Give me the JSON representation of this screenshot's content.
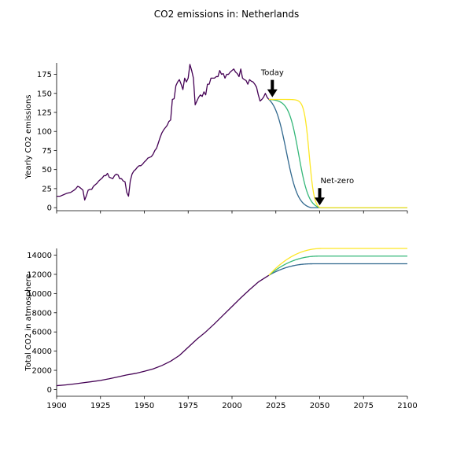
{
  "chart_data": {
    "title": "CO2 emissions in: Netherlands",
    "colors": {
      "historical": "#440154",
      "scenario_fast": "#31688e",
      "scenario_mid": "#35b779",
      "scenario_slow": "#fde725"
    },
    "x_ticks": [
      "1900",
      "1925",
      "1950",
      "1975",
      "2000",
      "2025",
      "2050",
      "2075",
      "2100"
    ],
    "panels": [
      {
        "type": "line",
        "ylabel": "Yearly CO2 emissions",
        "xlim": [
          1900,
          2100
        ],
        "ylim": [
          -4,
          190
        ],
        "y_ticks": [
          0,
          25,
          50,
          75,
          100,
          125,
          150,
          175
        ],
        "show_x_tick_labels": false,
        "historical": {
          "x": [
            1900,
            1902,
            1904,
            1906,
            1908,
            1910,
            1911,
            1912,
            1913,
            1914,
            1915,
            1916,
            1917,
            1918,
            1919,
            1920,
            1921,
            1922,
            1923,
            1924,
            1925,
            1926,
            1927,
            1928,
            1929,
            1930,
            1931,
            1932,
            1933,
            1934,
            1935,
            1936,
            1937,
            1938,
            1939,
            1940,
            1941,
            1942,
            1943,
            1944,
            1945,
            1946,
            1947,
            1948,
            1949,
            1950,
            1951,
            1952,
            1953,
            1954,
            1955,
            1956,
            1957,
            1958,
            1959,
            1960,
            1961,
            1962,
            1963,
            1964,
            1965,
            1966,
            1967,
            1968,
            1969,
            1970,
            1971,
            1972,
            1973,
            1974,
            1975,
            1976,
            1977,
            1978,
            1979,
            1980,
            1981,
            1982,
            1983,
            1984,
            1985,
            1986,
            1987,
            1988,
            1989,
            1990,
            1991,
            1992,
            1993,
            1994,
            1995,
            1996,
            1997,
            1998,
            1999,
            2000,
            2001,
            2002,
            2003,
            2004,
            2005,
            2006,
            2007,
            2008,
            2009,
            2010,
            2011,
            2012,
            2013,
            2014,
            2015,
            2016,
            2017,
            2018,
            2019,
            2020,
            2021
          ],
          "y": [
            15,
            15,
            17,
            19,
            20,
            23,
            25,
            28,
            27,
            25,
            23,
            10,
            16,
            23,
            24,
            24,
            28,
            30,
            32,
            35,
            37,
            39,
            42,
            42,
            45,
            40,
            39,
            38,
            42,
            44,
            43,
            38,
            38,
            35,
            34,
            20,
            15,
            35,
            44,
            48,
            50,
            53,
            55,
            55,
            57,
            60,
            62,
            65,
            66,
            67,
            70,
            75,
            78,
            85,
            92,
            98,
            102,
            105,
            108,
            113,
            115,
            142,
            143,
            160,
            165,
            168,
            162,
            155,
            170,
            165,
            170,
            188,
            180,
            170,
            135,
            140,
            145,
            148,
            146,
            152,
            148,
            162,
            162,
            170,
            170,
            170,
            172,
            172,
            180,
            175,
            176,
            170,
            175,
            175,
            178,
            180,
            182,
            178,
            176,
            172,
            182,
            170,
            168,
            167,
            162,
            168,
            166,
            165,
            162,
            158,
            148,
            140,
            142,
            145,
            150,
            145,
            142
          ]
        },
        "scenarios": [
          {
            "color_key": "scenario_fast",
            "start_year": 2021,
            "start_value": 142,
            "midpoint_year": 2031,
            "end_year": 2045
          },
          {
            "color_key": "scenario_mid",
            "start_year": 2021,
            "start_value": 142,
            "midpoint_year": 2038,
            "end_year": 2050
          },
          {
            "color_key": "scenario_slow",
            "start_year": 2021,
            "start_value": 142,
            "midpoint_year": 2044,
            "end_year": 2050
          }
        ],
        "annotations": [
          {
            "label": "Today",
            "x": 2023,
            "y": 145
          },
          {
            "label": "Net-zero",
            "x": 2050,
            "y": 3
          }
        ]
      },
      {
        "type": "line",
        "ylabel": "Total CO2 in atmosphere",
        "xlim": [
          1900,
          2100
        ],
        "ylim": [
          -700,
          14700
        ],
        "y_ticks": [
          0,
          2000,
          4000,
          6000,
          8000,
          10000,
          12000,
          14000
        ],
        "show_x_tick_labels": true,
        "historical": {
          "x": [
            1900,
            1905,
            1910,
            1915,
            1920,
            1925,
            1930,
            1935,
            1940,
            1945,
            1950,
            1955,
            1960,
            1965,
            1970,
            1975,
            1980,
            1985,
            1990,
            1995,
            2000,
            2005,
            2010,
            2015,
            2021
          ],
          "y": [
            400,
            480,
            580,
            700,
            820,
            950,
            1120,
            1320,
            1520,
            1680,
            1900,
            2150,
            2500,
            2950,
            3550,
            4400,
            5250,
            6000,
            6850,
            7750,
            8650,
            9550,
            10400,
            11200,
            11900
          ]
        },
        "scenarios": [
          {
            "color_key": "scenario_fast",
            "start_year": 2021,
            "start_value": 11900,
            "end_value": 13100,
            "end_year": 2046
          },
          {
            "color_key": "scenario_mid",
            "start_year": 2021,
            "start_value": 11900,
            "end_value": 13900,
            "end_year": 2050
          },
          {
            "color_key": "scenario_slow",
            "start_year": 2021,
            "start_value": 11900,
            "end_value": 14700,
            "end_year": 2052
          }
        ]
      }
    ]
  }
}
